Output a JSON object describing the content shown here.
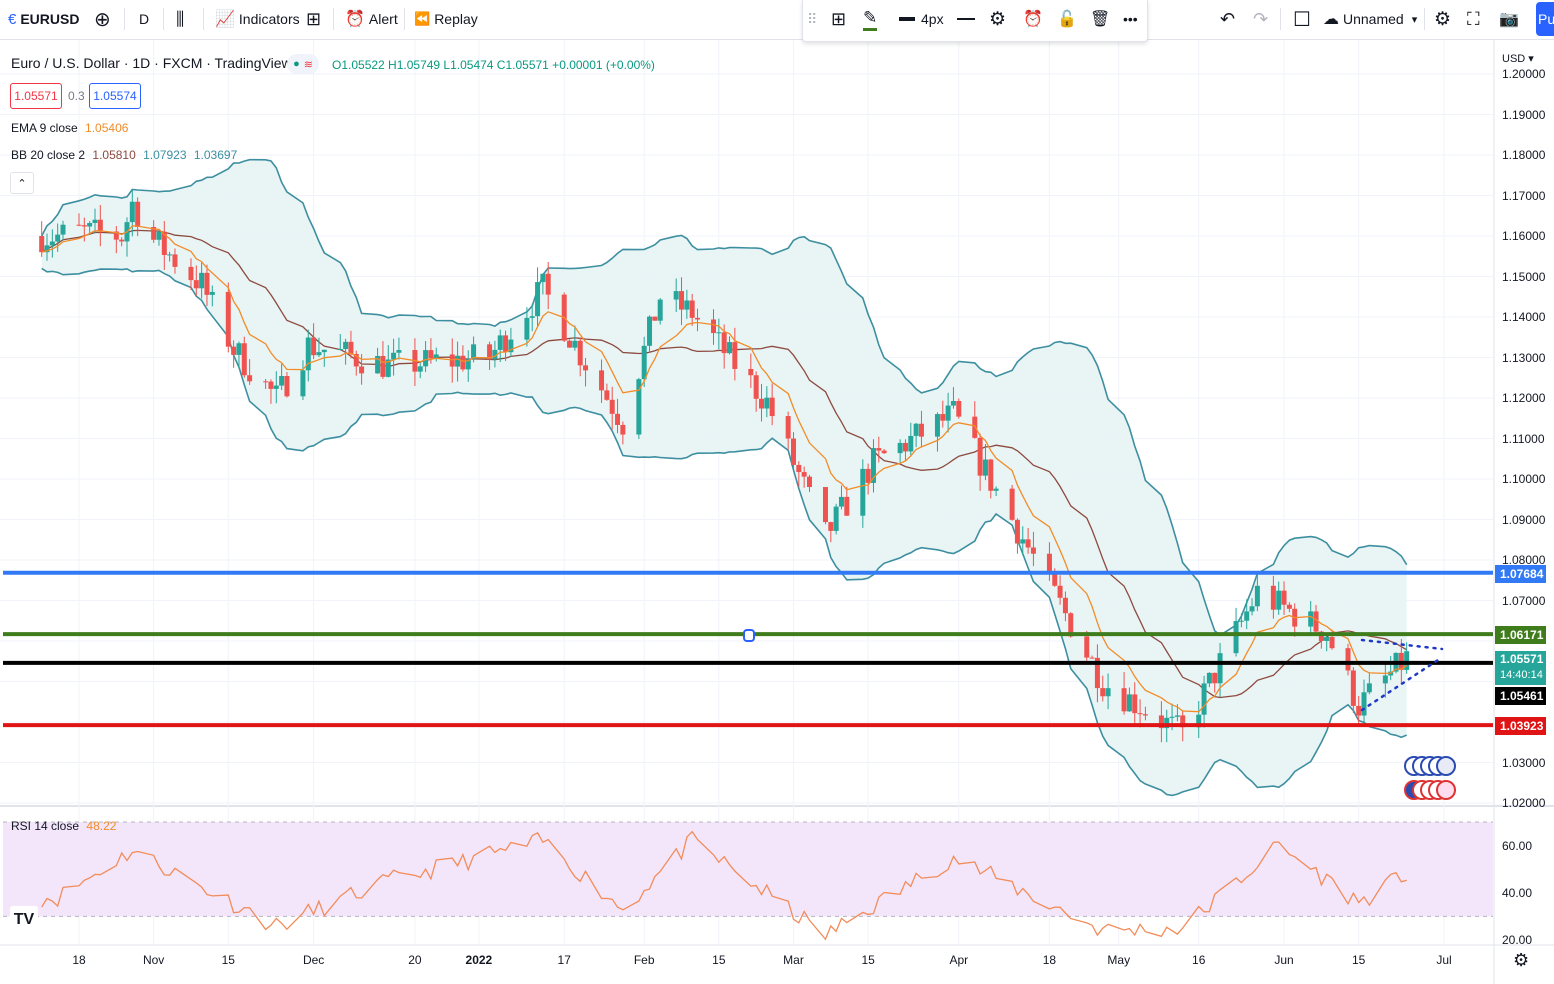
{
  "toolbar": {
    "symbol": "EURUSD",
    "interval": "D",
    "indicators_label": "Indicators",
    "alert_label": "Alert",
    "replay_label": "Replay",
    "line_width_label": "4px",
    "layout_name": "Unnamed",
    "publish_label": "Pu"
  },
  "legend": {
    "title": "Euro / U.S. Dollar · 1D · FXCM · TradingView",
    "ohlc": "O1.05522 H1.05749 L1.05474 C1.05571 +0.00001 (+0.00%)",
    "sell_price": "1.05571",
    "spread": "0.3",
    "buy_price": "1.05574",
    "ema_label": "EMA 9 close",
    "ema_value": "1.05406",
    "bb_label": "BB 20 close 2",
    "bb_basis": "1.05810",
    "bb_upper": "1.07923",
    "bb_lower": "1.03697",
    "rsi_label": "RSI 14 close",
    "rsi_value": "48.22"
  },
  "axis": {
    "currency": "USD",
    "price_ticks": [
      "1.20000",
      "1.19000",
      "1.18000",
      "1.17000",
      "1.16000",
      "1.15000",
      "1.14000",
      "1.13000",
      "1.12000",
      "1.11000",
      "1.10000",
      "1.09000",
      "1.08000",
      "1.07000",
      "1.03000",
      "1.02000"
    ],
    "rsi_ticks": [
      "60.00",
      "40.00",
      "20.00"
    ],
    "time_ticks": [
      "18",
      "Nov",
      "15",
      "Dec",
      "20",
      "2022",
      "17",
      "Feb",
      "15",
      "Mar",
      "15",
      "Apr",
      "18",
      "May",
      "16",
      "Jun",
      "15",
      "Jul"
    ],
    "price_labels": {
      "blue": "1.07684",
      "green": "1.06171",
      "last": "1.05571",
      "countdown": "14:40:14",
      "black": "1.05461",
      "red": "1.03923"
    }
  },
  "colors": {
    "up": "#26a69a",
    "down": "#ef5350",
    "ema": "#f28c28",
    "bb_basis": "#8d4a3f",
    "bb_band": "#3d8fa0",
    "bb_fill": "#e7f3f4",
    "rsi_line": "#f28c5a",
    "rsi_fill": "#f3e6fb",
    "line_blue": "#3179f5",
    "line_green": "#3f7c1c",
    "line_black": "#000000",
    "line_red": "#e01414"
  },
  "chart_data": {
    "type": "candlestick",
    "symbol": "EURUSD",
    "timeframe": "1D",
    "price_range": [
      1.02,
      1.2
    ],
    "horizontal_lines": [
      1.07684,
      1.06171,
      1.05461,
      1.03923
    ],
    "last_price": 1.05571,
    "candles_sampled": [
      {
        "date": "2021-10-14",
        "close": 1.16
      },
      {
        "date": "2021-10-18",
        "close": 1.161
      },
      {
        "date": "2021-10-26",
        "close": 1.16
      },
      {
        "date": "2021-10-28",
        "close": 1.168
      },
      {
        "date": "2021-11-01",
        "close": 1.159
      },
      {
        "date": "2021-11-10",
        "close": 1.148
      },
      {
        "date": "2021-11-16",
        "close": 1.132
      },
      {
        "date": "2021-11-24",
        "close": 1.12
      },
      {
        "date": "2021-11-30",
        "close": 1.133
      },
      {
        "date": "2021-12-15",
        "close": 1.128
      },
      {
        "date": "2022-01-03",
        "close": 1.13
      },
      {
        "date": "2022-01-13",
        "close": 1.147
      },
      {
        "date": "2022-01-20",
        "close": 1.131
      },
      {
        "date": "2022-01-28",
        "close": 1.114
      },
      {
        "date": "2022-02-04",
        "close": 1.145
      },
      {
        "date": "2022-02-10",
        "close": 1.141
      },
      {
        "date": "2022-02-24",
        "close": 1.119
      },
      {
        "date": "2022-03-07",
        "close": 1.086
      },
      {
        "date": "2022-03-16",
        "close": 1.104
      },
      {
        "date": "2022-03-31",
        "close": 1.116
      },
      {
        "date": "2022-04-14",
        "close": 1.083
      },
      {
        "date": "2022-04-28",
        "close": 1.05
      },
      {
        "date": "2022-05-13",
        "close": 1.037
      },
      {
        "date": "2022-05-27",
        "close": 1.072
      },
      {
        "date": "2022-06-09",
        "close": 1.062
      },
      {
        "date": "2022-06-15",
        "close": 1.044
      },
      {
        "date": "2022-06-24",
        "close": 1.0557
      }
    ],
    "rsi_range": [
      20,
      70
    ],
    "rsi_sampled": [
      {
        "date": "2021-10-14",
        "value": 38
      },
      {
        "date": "2021-10-28",
        "value": 58
      },
      {
        "date": "2021-11-24",
        "value": 26
      },
      {
        "date": "2021-12-15",
        "value": 45
      },
      {
        "date": "2022-01-13",
        "value": 62
      },
      {
        "date": "2022-01-28",
        "value": 33
      },
      {
        "date": "2022-02-10",
        "value": 62
      },
      {
        "date": "2022-03-07",
        "value": 22
      },
      {
        "date": "2022-03-31",
        "value": 55
      },
      {
        "date": "2022-04-28",
        "value": 24
      },
      {
        "date": "2022-05-13",
        "value": 25
      },
      {
        "date": "2022-05-31",
        "value": 60
      },
      {
        "date": "2022-06-15",
        "value": 36
      },
      {
        "date": "2022-06-24",
        "value": 48
      }
    ]
  }
}
